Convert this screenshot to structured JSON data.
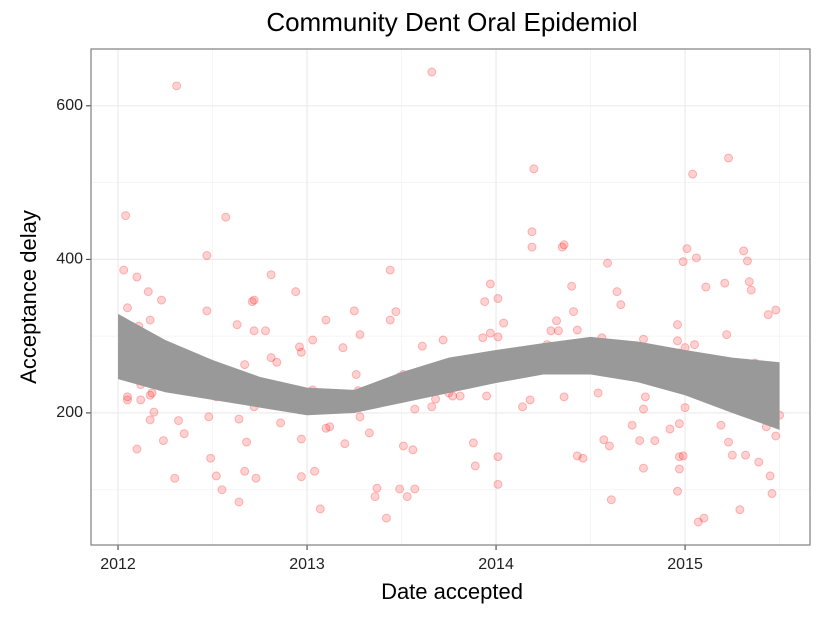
{
  "chart_data": {
    "type": "scatter",
    "title": "Community Dent Oral Epidemiol",
    "x_label": "Date accepted",
    "y_label": "Acceptance delay",
    "x": [
      2012.03,
      2012.04,
      2012.05,
      2012.05,
      2012.05,
      2012.1,
      2012.11,
      2012.11,
      2012.11,
      2012.1,
      2012.12,
      2012.12,
      2012.12,
      2012.16,
      2012.17,
      2012.17,
      2012.18,
      2012.18,
      2012.17,
      2012.19,
      2012.17,
      2012.21,
      2012.23,
      2012.23,
      2012.24,
      2012.3,
      2012.31,
      2012.32,
      2012.35,
      2012.47,
      2012.47,
      2012.48,
      2012.49,
      2012.51,
      2012.52,
      2012.52,
      2012.55,
      2012.57,
      2012.61,
      2012.61,
      2012.63,
      2012.63,
      2012.64,
      2012.64,
      2012.67,
      2012.67,
      2012.68,
      2012.71,
      2012.72,
      2012.72,
      2012.72,
      2012.73,
      2012.78,
      2012.81,
      2012.81,
      2012.84,
      2012.84,
      2012.86,
      2012.94,
      2012.96,
      2012.96,
      2012.97,
      2012.97,
      2012.97,
      2013.01,
      2013.03,
      2013.03,
      2013.04,
      2013.07,
      2013.1,
      2013.1,
      2013.12,
      2013.19,
      2013.2,
      2013.25,
      2013.26,
      2013.27,
      2013.28,
      2013.28,
      2013.33,
      2013.36,
      2013.37,
      2013.38,
      2013.42,
      2013.44,
      2013.44,
      2013.47,
      2013.49,
      2013.49,
      2013.51,
      2013.51,
      2013.53,
      2013.54,
      2013.56,
      2013.57,
      2013.57,
      2013.59,
      2013.61,
      2013.66,
      2013.66,
      2013.67,
      2013.68,
      2013.72,
      2013.75,
      2013.77,
      2013.81,
      2013.88,
      2013.89,
      2013.93,
      2013.94,
      2013.95,
      2013.97,
      2013.97,
      2014.01,
      2014.01,
      2014.01,
      2014.01,
      2014.04,
      2014.14,
      2014.18,
      2014.19,
      2014.19,
      2014.2,
      2014.27,
      2014.29,
      2014.32,
      2014.33,
      2014.35,
      2014.36,
      2014.36,
      2014.4,
      2014.41,
      2014.43,
      2014.43,
      2014.46,
      2014.47,
      2014.54,
      2014.56,
      2014.57,
      2014.59,
      2014.61,
      2014.6,
      2014.64,
      2014.65,
      2014.66,
      2014.68,
      2014.72,
      2014.76,
      2014.78,
      2014.78,
      2014.78,
      2014.79,
      2014.79,
      2014.84,
      2014.92,
      2014.96,
      2014.96,
      2014.96,
      2014.97,
      2014.97,
      2014.97,
      2014.97,
      2014.98,
      2014.99,
      2014.99,
      2015.0,
      2015.0,
      2015.01,
      2015.04,
      2015.05,
      2015.06,
      2015.07,
      2015.1,
      2015.11,
      2015.19,
      2015.21,
      2015.22,
      2015.23,
      2015.23,
      2015.25,
      2015.29,
      2015.29,
      2015.31,
      2015.32,
      2015.33,
      2015.34,
      2015.35,
      2015.37,
      2015.38,
      2015.39,
      2015.4,
      2015.4,
      2015.41,
      2015.43,
      2015.44,
      2015.45,
      2015.46,
      2015.46,
      2015.48,
      2015.48,
      2015.5
    ],
    "values": [
      386,
      457,
      337,
      221,
      217,
      377,
      313,
      291,
      264,
      153,
      256,
      237,
      217,
      358,
      321,
      260,
      257,
      226,
      223,
      201,
      191,
      259,
      347,
      248,
      164,
      115,
      626,
      190,
      173,
      405,
      333,
      195,
      141,
      226,
      221,
      118,
      100,
      455,
      240,
      235,
      221,
      315,
      192,
      84,
      263,
      124,
      162,
      345,
      347,
      307,
      208,
      115,
      307,
      380,
      272,
      229,
      266,
      187,
      358,
      204,
      286,
      279,
      117,
      166,
      218,
      295,
      230,
      124,
      75,
      321,
      180,
      182,
      285,
      160,
      333,
      250,
      229,
      302,
      195,
      174,
      91,
      102,
      225,
      63,
      386,
      321,
      332,
      247,
      101,
      250,
      157,
      91,
      229,
      152,
      101,
      205,
      235,
      287,
      644,
      208,
      231,
      218,
      295,
      226,
      222,
      222,
      161,
      131,
      298,
      345,
      222,
      368,
      304,
      349,
      299,
      143,
      107,
      317,
      208,
      217,
      416,
      436,
      518,
      289,
      307,
      320,
      307,
      416,
      419,
      221,
      365,
      332,
      308,
      144,
      141,
      269,
      226,
      298,
      165,
      395,
      87,
      157,
      358,
      259,
      341,
      273,
      184,
      164,
      128,
      296,
      205,
      221,
      251,
      164,
      179,
      98,
      294,
      315,
      127,
      278,
      186,
      143,
      255,
      397,
      144,
      285,
      207,
      414,
      511,
      289,
      402,
      58,
      63,
      364,
      184,
      369,
      302,
      532,
      162,
      145,
      246,
      74,
      411,
      145,
      398,
      371,
      360,
      265,
      220,
      136,
      214,
      209,
      201,
      182,
      328,
      118,
      238,
      95,
      334,
      170,
      197
    ],
    "color": "#ff0000",
    "smooth": {
      "x": [
        2012.0,
        2012.25,
        2012.5,
        2012.75,
        2013.0,
        2013.25,
        2013.5,
        2013.75,
        2014.0,
        2014.25,
        2014.5,
        2014.75,
        2015.0,
        2015.25,
        2015.5
      ],
      "lower": [
        244,
        227,
        217,
        207,
        197,
        200,
        213,
        226,
        239,
        250,
        250,
        240,
        223,
        200,
        178
      ],
      "upper": [
        329,
        295,
        269,
        247,
        233,
        230,
        253,
        272,
        282,
        291,
        299,
        293,
        282,
        272,
        266
      ],
      "color": "#999999"
    },
    "xlim": [
      2011.857,
      2015.661
    ],
    "ylim": [
      28,
      674
    ],
    "xticks": [
      2012,
      2013,
      2014,
      2015
    ],
    "yticks": [
      200,
      400,
      600
    ],
    "x_minor_grid": [
      2012.5,
      2013.5,
      2014.5,
      2015.5
    ],
    "y_minor_grid": [
      100,
      300,
      500
    ],
    "grid": true
  }
}
